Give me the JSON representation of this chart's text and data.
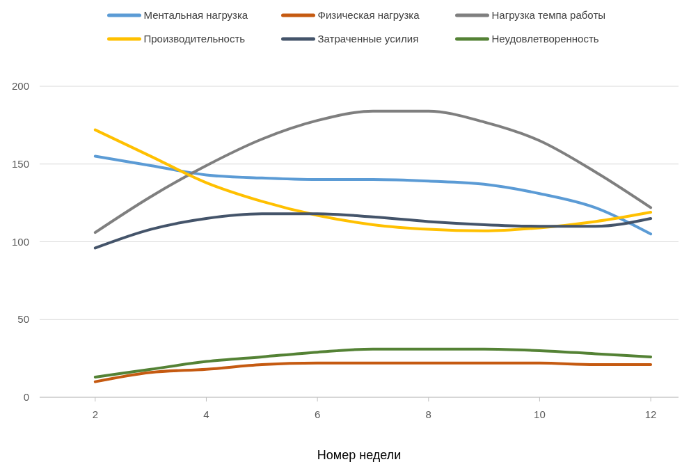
{
  "chart_data": {
    "type": "line",
    "xlabel": "Номер недели",
    "x": [
      2,
      3,
      4,
      5,
      6,
      7,
      8,
      9,
      10,
      11,
      12
    ],
    "xlim": [
      1,
      12.5
    ],
    "xticks": [
      2,
      4,
      6,
      8,
      10,
      12
    ],
    "ylim": [
      0,
      200
    ],
    "yticks": [
      0,
      50,
      100,
      150,
      200
    ],
    "grid": "y",
    "legend": "top",
    "marker": "none",
    "line_style": "solid",
    "series": [
      {
        "name": "Ментальная нагрузка",
        "color": "#5b9bd5",
        "values": [
          155,
          149,
          143,
          141,
          140,
          140,
          139,
          137,
          131,
          122,
          105
        ]
      },
      {
        "name": "Физическая нагрузка",
        "color": "#c55a11",
        "values": [
          10,
          16,
          18,
          21,
          22,
          22,
          22,
          22,
          22,
          21,
          21
        ]
      },
      {
        "name": "Нагрузка темпа работы",
        "color": "#7f7f7f",
        "values": [
          106,
          129,
          149,
          166,
          178,
          184,
          184,
          177,
          165,
          145,
          122
        ]
      },
      {
        "name": "Производительность",
        "color": "#ffc000",
        "values": [
          172,
          155,
          138,
          126,
          117,
          111,
          108,
          107,
          109,
          113,
          119
        ]
      },
      {
        "name": "Затраченные усилия",
        "color": "#44546a",
        "values": [
          96,
          108,
          115,
          118,
          118,
          116,
          113,
          111,
          110,
          110,
          115
        ]
      },
      {
        "name": "Неудовлетворенность",
        "color": "#548235",
        "values": [
          13,
          18,
          23,
          26,
          29,
          31,
          31,
          31,
          30,
          28,
          26
        ]
      }
    ]
  }
}
